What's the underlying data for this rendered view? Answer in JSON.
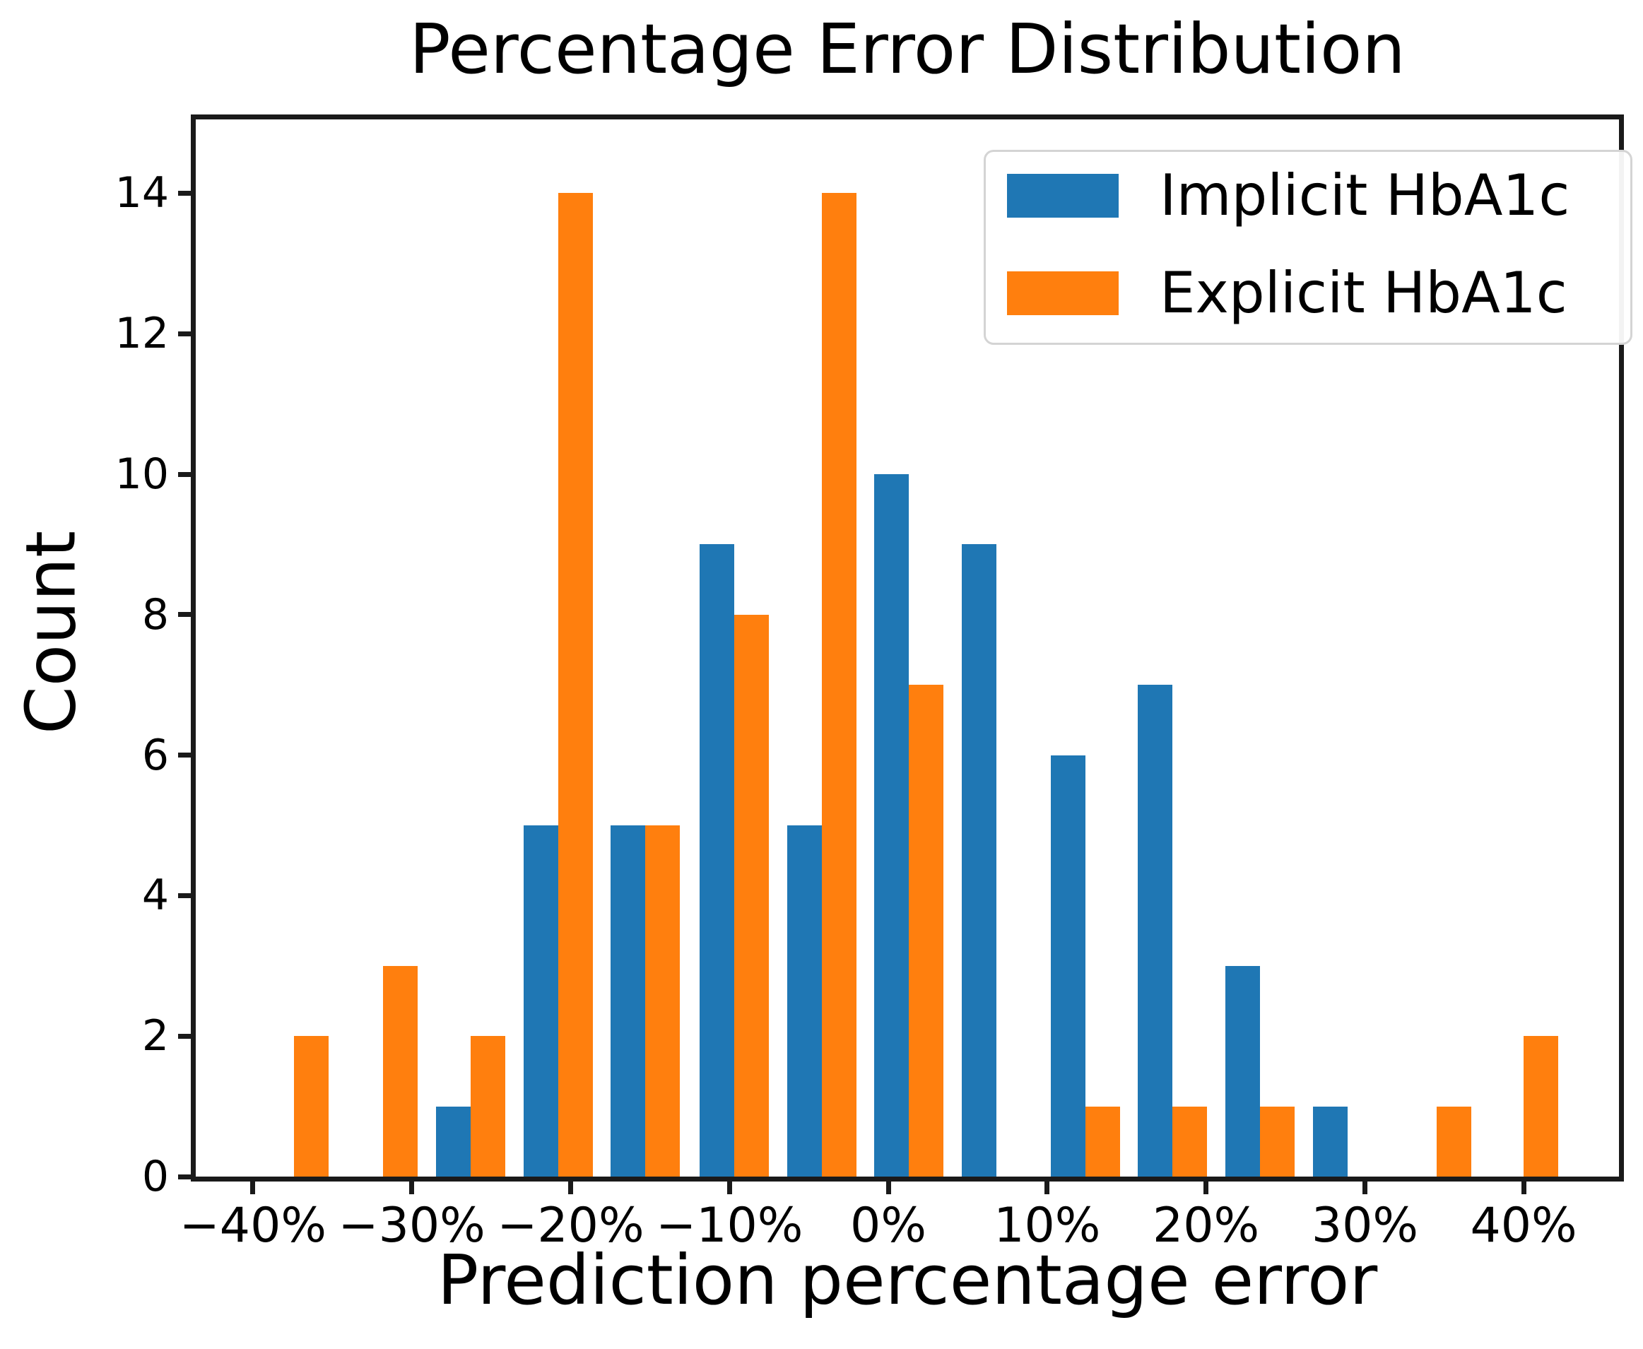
{
  "chart_data": {
    "type": "bar",
    "title": "Percentage Error Distribution",
    "xlabel": "Prediction percentage error",
    "ylabel": "Count",
    "grid": false,
    "legend_position": "upper right",
    "series": [
      {
        "name": "Implicit HbA1c",
        "color": "#1f77b4",
        "values": [
          0,
          0,
          1,
          5,
          5,
          9,
          5,
          10,
          9,
          6,
          7,
          3,
          1,
          0,
          0
        ]
      },
      {
        "name": "Explicit HbA1c",
        "color": "#ff7f0e",
        "values": [
          2,
          3,
          2,
          14,
          5,
          8,
          14,
          7,
          0,
          1,
          1,
          1,
          0,
          1,
          2
        ]
      }
    ],
    "bin_centers_pct": [
      -37.4,
      -31.8,
      -26.3,
      -20.8,
      -15.3,
      -9.7,
      -4.2,
      1.3,
      6.8,
      12.4,
      17.9,
      23.4,
      28.9,
      34.5,
      40.0
    ],
    "bar_width_pct": 2.18,
    "x_tick_values": [
      -40,
      -30,
      -20,
      -10,
      0,
      10,
      20,
      30,
      40
    ],
    "x_tick_labels": [
      "−40%",
      "−30%",
      "−20%",
      "−10%",
      "0%",
      "10%",
      "20%",
      "30%",
      "40%"
    ],
    "y_tick_values": [
      0,
      2,
      4,
      6,
      8,
      10,
      12,
      14
    ],
    "xlim": [
      -43.6,
      46.0
    ],
    "ylim": [
      0,
      15.05
    ]
  }
}
